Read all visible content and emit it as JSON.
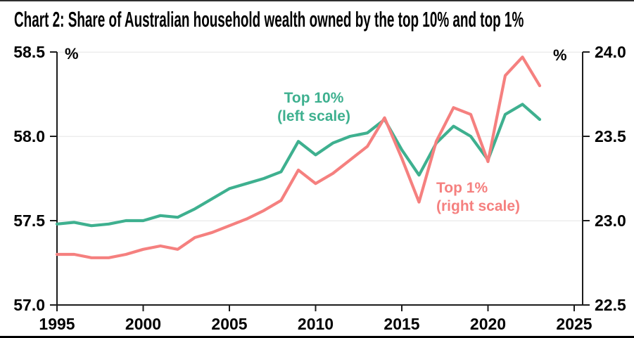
{
  "title": "Chart 2: Share of Australian household wealth owned by the top 10% and top 1%",
  "colors": {
    "axis": "#1c1c1c",
    "grid": "#ededed",
    "text": "#000000"
  },
  "axes": {
    "left_unit": "%",
    "right_unit": "%",
    "left_ticks": [
      "58.5",
      "58.0",
      "57.5",
      "57.0"
    ],
    "left_tick_values": [
      58.5,
      58.0,
      57.5,
      57.0
    ],
    "right_ticks": [
      "24.0",
      "23.5",
      "23.0",
      "22.5"
    ],
    "right_tick_values": [
      24.0,
      23.5,
      23.0,
      22.5
    ],
    "x_ticks": [
      "1995",
      "2000",
      "2005",
      "2010",
      "2015",
      "2020",
      "2025"
    ],
    "x_tick_values": [
      1995,
      2000,
      2005,
      2010,
      2015,
      2020,
      2025
    ],
    "left_range": [
      57.0,
      58.5
    ],
    "right_range": [
      22.5,
      24.0
    ],
    "x_range": [
      1995,
      2025
    ]
  },
  "legend": {
    "top10": {
      "line1": "Top 10%",
      "line2": "(left scale)"
    },
    "top1": {
      "line1": "Top 1%",
      "line2": "(right scale)"
    }
  },
  "chart_data": {
    "type": "line",
    "title": "Chart 2: Share of Australian household wealth owned by the top 10% and top 1%",
    "grid": true,
    "legend_position": "inline-annotations",
    "xlim": [
      1995,
      2025
    ],
    "ylim_left": [
      57.0,
      58.5
    ],
    "ylim_right": [
      22.5,
      24.0
    ],
    "x": [
      1995,
      1996,
      1997,
      1998,
      1999,
      2000,
      2001,
      2002,
      2003,
      2004,
      2005,
      2006,
      2007,
      2008,
      2009,
      2010,
      2011,
      2012,
      2013,
      2014,
      2015,
      2016,
      2017,
      2018,
      2019,
      2020,
      2021,
      2022,
      2023
    ],
    "series": [
      {
        "name": "Top 10%",
        "axis": "left",
        "color": "#3eb08f",
        "values": [
          57.48,
          57.49,
          57.47,
          57.48,
          57.5,
          57.5,
          57.53,
          57.52,
          57.57,
          57.63,
          57.69,
          57.72,
          57.75,
          57.79,
          57.97,
          57.89,
          57.96,
          58.0,
          58.02,
          58.1,
          57.92,
          57.77,
          57.96,
          58.06,
          58.0,
          57.86,
          58.13,
          58.19,
          58.1
        ]
      },
      {
        "name": "Top 1%",
        "axis": "right",
        "color": "#f5807f",
        "values": [
          22.8,
          22.8,
          22.78,
          22.78,
          22.8,
          22.83,
          22.85,
          22.83,
          22.9,
          22.93,
          22.97,
          23.01,
          23.06,
          23.12,
          23.3,
          23.22,
          23.28,
          23.36,
          23.44,
          23.61,
          23.37,
          23.11,
          23.47,
          23.67,
          23.63,
          23.35,
          23.86,
          23.97,
          23.8
        ]
      }
    ]
  }
}
